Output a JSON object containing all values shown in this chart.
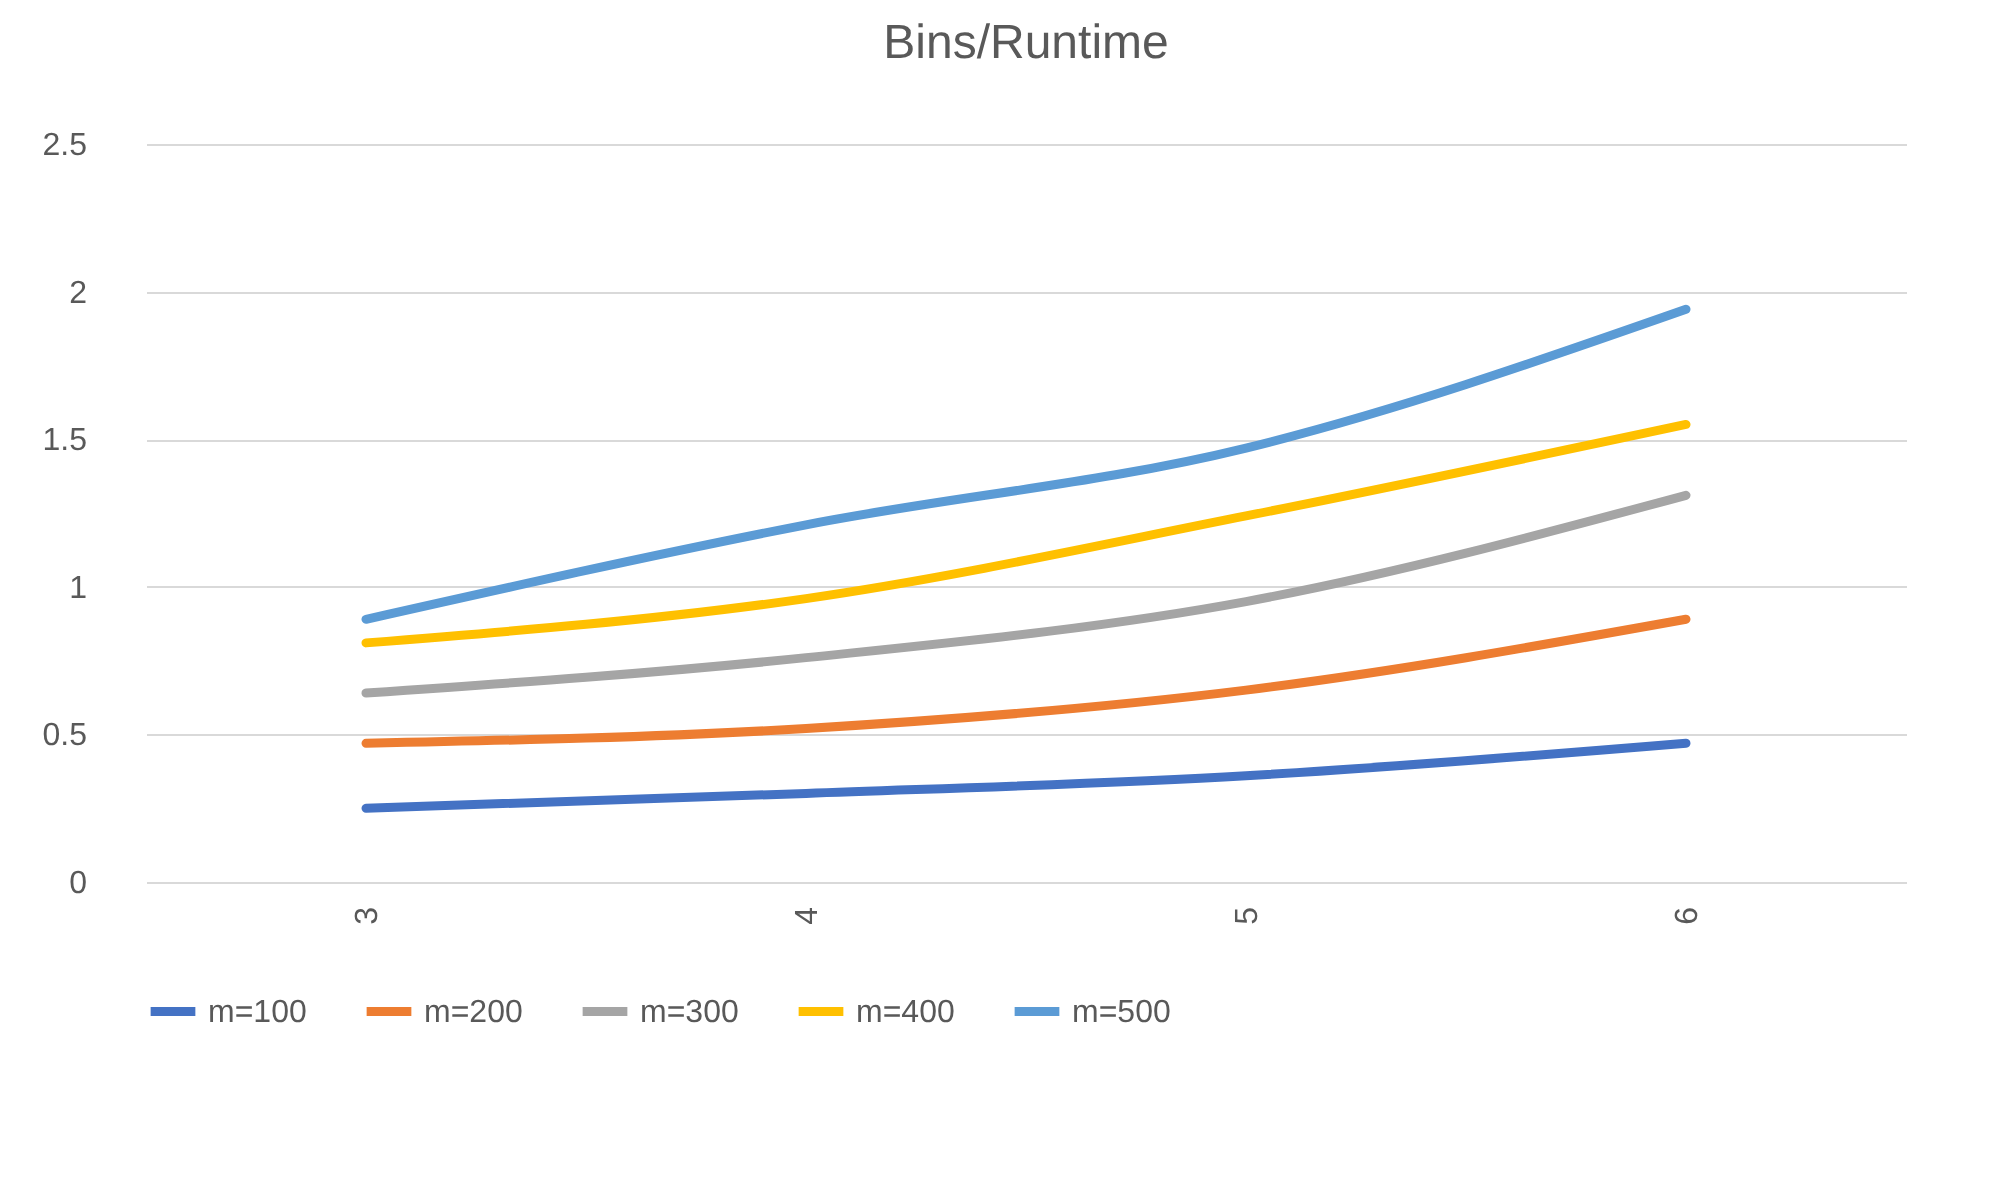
{
  "chart_data": {
    "type": "line",
    "title": "Bins/Runtime",
    "categories": [
      "3",
      "4",
      "5",
      "6"
    ],
    "series": [
      {
        "name": "m=100",
        "color": "#4472c4",
        "values": [
          0.25,
          0.3,
          0.36,
          0.47
        ]
      },
      {
        "name": "m=200",
        "color": "#ed7d31",
        "values": [
          0.47,
          0.52,
          0.65,
          0.89
        ]
      },
      {
        "name": "m=300",
        "color": "#a5a5a5",
        "values": [
          0.64,
          0.76,
          0.95,
          1.31
        ]
      },
      {
        "name": "m=400",
        "color": "#ffc000",
        "values": [
          0.81,
          0.96,
          1.24,
          1.55
        ]
      },
      {
        "name": "m=500",
        "color": "#5b9bd5",
        "values": [
          0.89,
          1.21,
          1.47,
          1.94
        ]
      }
    ],
    "ylim": [
      0,
      2.5
    ],
    "yticks": [
      0,
      0.5,
      1,
      1.5,
      2,
      2.5
    ],
    "grid": "y",
    "legend": "bottom",
    "marker": "none",
    "line_style": "solid"
  }
}
